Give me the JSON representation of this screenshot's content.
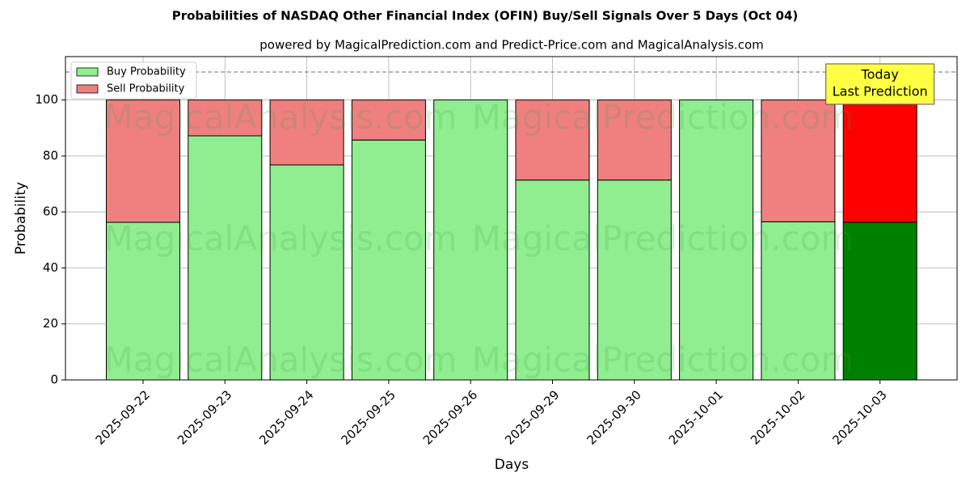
{
  "chart_data": {
    "type": "stacked-bar",
    "title": "Probabilities of NASDAQ Other Financial Index (OFIN) Buy/Sell Signals Over 5 Days (Oct 04)",
    "subtitle": "powered by MagicalPrediction.com and Predict-Price.com and MagicalAnalysis.com",
    "x_label": "Days",
    "y_label": "Probability",
    "categories": [
      "2025-09-22",
      "2025-09-23",
      "2025-09-24",
      "2025-09-25",
      "2025-09-26",
      "2025-09-29",
      "2025-09-30",
      "2025-10-01",
      "2025-10-02",
      "2025-10-03"
    ],
    "series": [
      {
        "name": "Buy Probability",
        "color": "#90ee90",
        "highlight_color": "#008000",
        "values": [
          56.3,
          87.2,
          76.8,
          85.7,
          100,
          71.4,
          71.4,
          100,
          56.5,
          56.3
        ]
      },
      {
        "name": "Sell Probability",
        "color": "#f08080",
        "highlight_color": "#ff0000",
        "values": [
          43.7,
          12.8,
          23.2,
          14.3,
          0,
          28.6,
          28.6,
          0,
          43.5,
          43.7
        ]
      }
    ],
    "ylim": [
      0,
      115.5
    ],
    "yticks": [
      0,
      20,
      40,
      60,
      80,
      100
    ],
    "grid": true,
    "legend": "upper-left",
    "hline": 110,
    "annotation": [
      "Today",
      "Last Prediction"
    ],
    "watermarks": [
      "MagicalAnalysis.com",
      "MagicalPrediction.com"
    ]
  }
}
